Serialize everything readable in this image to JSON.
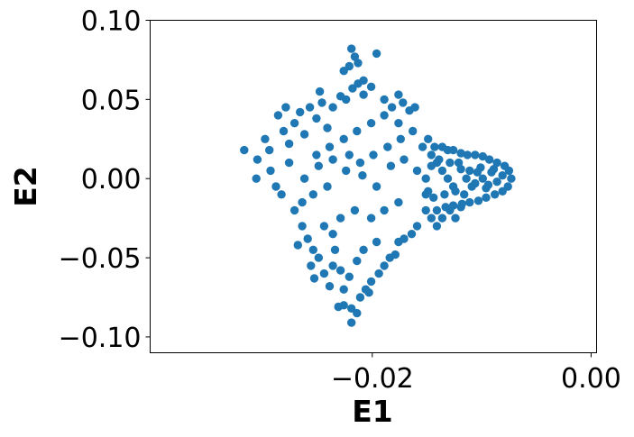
{
  "chart_data": {
    "type": "scatter",
    "title": "",
    "xlabel": "E1",
    "ylabel": "E2",
    "xlim": [
      -0.0403,
      0.0005
    ],
    "ylim": [
      -0.11,
      0.1
    ],
    "x_ticks": [
      -0.02,
      0.0
    ],
    "x_tick_labels": [
      "−0.02",
      "0.00"
    ],
    "y_ticks": [
      -0.1,
      -0.05,
      0.0,
      0.05,
      0.1
    ],
    "y_tick_labels": [
      "−0.10",
      "−0.05",
      "0.00",
      "0.05",
      "0.10"
    ],
    "grid": false,
    "legend": "none",
    "marker_color": "#1f77b4",
    "series": [
      {
        "values": [
          [
            -0.0317,
            0.018
          ],
          [
            -0.0305,
            0.012
          ],
          [
            -0.0298,
            0.025
          ],
          [
            -0.0293,
            0.005
          ],
          [
            -0.0306,
            0.0
          ],
          [
            -0.0288,
            -0.005
          ],
          [
            -0.0283,
            -0.01
          ],
          [
            -0.0294,
            0.018
          ],
          [
            -0.0281,
            0.03
          ],
          [
            -0.0276,
            0.022
          ],
          [
            -0.0286,
            0.04
          ],
          [
            -0.0279,
            0.045
          ],
          [
            -0.0271,
            0.035
          ],
          [
            -0.0266,
            0.042
          ],
          [
            -0.0262,
            0.028
          ],
          [
            -0.0257,
            0.045
          ],
          [
            -0.0251,
            0.038
          ],
          [
            -0.0246,
            0.048
          ],
          [
            -0.0241,
            0.032
          ],
          [
            -0.0236,
            0.045
          ],
          [
            -0.0229,
            0.052
          ],
          [
            -0.0224,
            0.05
          ],
          [
            -0.0218,
            0.057
          ],
          [
            -0.0213,
            0.06
          ],
          [
            -0.0226,
            0.068
          ],
          [
            -0.0221,
            0.071
          ],
          [
            -0.0216,
            0.077
          ],
          [
            -0.0219,
            0.082
          ],
          [
            -0.0213,
            0.073
          ],
          [
            -0.0208,
            0.062
          ],
          [
            -0.0196,
            0.079
          ],
          [
            -0.0201,
            0.058
          ],
          [
            -0.0208,
            0.053
          ],
          [
            -0.0189,
            0.05
          ],
          [
            -0.0182,
            0.045
          ],
          [
            -0.0176,
            0.053
          ],
          [
            -0.0172,
            0.048
          ],
          [
            -0.0166,
            0.043
          ],
          [
            -0.0161,
            0.045
          ],
          [
            -0.0248,
            0.055
          ],
          [
            -0.0271,
            -0.02
          ],
          [
            -0.0264,
            -0.03
          ],
          [
            -0.0268,
            -0.042
          ],
          [
            -0.0259,
            -0.038
          ],
          [
            -0.0254,
            -0.045
          ],
          [
            -0.0256,
            -0.055
          ],
          [
            -0.0249,
            -0.05
          ],
          [
            -0.0253,
            -0.063
          ],
          [
            -0.0244,
            -0.06
          ],
          [
            -0.0239,
            -0.068
          ],
          [
            -0.0236,
            -0.055
          ],
          [
            -0.0234,
            -0.045
          ],
          [
            -0.0226,
            -0.07
          ],
          [
            -0.0231,
            -0.081
          ],
          [
            -0.0226,
            -0.08
          ],
          [
            -0.0219,
            -0.082
          ],
          [
            -0.0219,
            -0.091
          ],
          [
            -0.0211,
            -0.075
          ],
          [
            -0.0214,
            -0.085
          ],
          [
            -0.0206,
            -0.07
          ],
          [
            -0.0201,
            -0.065
          ],
          [
            -0.0203,
            -0.072
          ],
          [
            -0.0194,
            -0.06
          ],
          [
            -0.0189,
            -0.055
          ],
          [
            -0.0184,
            -0.05
          ],
          [
            -0.0179,
            -0.048
          ],
          [
            -0.0176,
            -0.04
          ],
          [
            -0.0171,
            -0.038
          ],
          [
            -0.0164,
            -0.035
          ],
          [
            -0.0159,
            -0.03
          ],
          [
            -0.0221,
            -0.062
          ],
          [
            -0.0229,
            -0.058
          ],
          [
            -0.0214,
            -0.052
          ],
          [
            -0.0208,
            -0.045
          ],
          [
            -0.0196,
            -0.04
          ],
          [
            -0.0236,
            -0.035
          ],
          [
            -0.0244,
            -0.03
          ],
          [
            -0.0229,
            -0.025
          ],
          [
            -0.0216,
            -0.02
          ],
          [
            -0.0201,
            -0.025
          ],
          [
            -0.0189,
            -0.02
          ],
          [
            -0.0176,
            -0.015
          ],
          [
            -0.0264,
            -0.015
          ],
          [
            -0.0254,
            -0.01
          ],
          [
            -0.0241,
            -0.005
          ],
          [
            -0.0224,
            0.005
          ],
          [
            -0.0211,
            0.01
          ],
          [
            -0.0199,
            0.015
          ],
          [
            -0.0186,
            0.02
          ],
          [
            -0.0174,
            0.025
          ],
          [
            -0.0251,
            0.015
          ],
          [
            -0.0239,
            0.02
          ],
          [
            -0.0226,
            0.025
          ],
          [
            -0.0214,
            0.03
          ],
          [
            -0.0201,
            0.035
          ],
          [
            -0.0189,
            0.04
          ],
          [
            -0.0176,
            0.035
          ],
          [
            -0.0163,
            0.03
          ],
          [
            -0.0276,
            0.01
          ],
          [
            -0.0262,
            0.0
          ],
          [
            -0.0249,
            0.008
          ],
          [
            -0.0236,
            0.012
          ],
          [
            -0.0221,
            0.015
          ],
          [
            -0.0209,
            0.002
          ],
          [
            -0.0196,
            -0.005
          ],
          [
            -0.0183,
            0.008
          ],
          [
            -0.0171,
            0.012
          ],
          [
            -0.0159,
            0.005
          ],
          [
            -0.0154,
            0.02
          ],
          [
            -0.0151,
            -0.01
          ],
          [
            -0.0151,
            -0.02
          ],
          [
            -0.0146,
            -0.025
          ],
          [
            -0.0141,
            -0.03
          ],
          [
            -0.0136,
            -0.025
          ],
          [
            -0.0129,
            -0.02
          ],
          [
            -0.0124,
            -0.025
          ],
          [
            -0.0119,
            -0.018
          ],
          [
            -0.0149,
            0.025
          ],
          [
            -0.0143,
            0.02
          ],
          [
            -0.0136,
            0.02
          ],
          [
            -0.0131,
            0.018
          ],
          [
            -0.0126,
            0.018
          ],
          [
            -0.0119,
            0.016
          ],
          [
            -0.0113,
            0.015
          ],
          [
            -0.0106,
            0.015
          ],
          [
            -0.0099,
            0.014
          ],
          [
            -0.0093,
            0.012
          ],
          [
            -0.0086,
            0.01
          ],
          [
            -0.0079,
            0.008
          ],
          [
            -0.0075,
            0.005
          ],
          [
            -0.0073,
            0.0
          ],
          [
            -0.0076,
            -0.005
          ],
          [
            -0.0081,
            -0.008
          ],
          [
            -0.0088,
            -0.01
          ],
          [
            -0.0096,
            -0.012
          ],
          [
            -0.0103,
            -0.014
          ],
          [
            -0.0111,
            -0.015
          ],
          [
            -0.0118,
            -0.016
          ],
          [
            -0.0126,
            -0.017
          ],
          [
            -0.0133,
            -0.018
          ],
          [
            -0.0141,
            -0.02
          ],
          [
            -0.0146,
            0.015
          ],
          [
            -0.0141,
            0.01
          ],
          [
            -0.0136,
            0.005
          ],
          [
            -0.0131,
            0.0
          ],
          [
            -0.0126,
            -0.005
          ],
          [
            -0.0121,
            0.01
          ],
          [
            -0.0116,
            -0.01
          ],
          [
            -0.0111,
            0.005
          ],
          [
            -0.0106,
            -0.003
          ],
          [
            -0.0101,
            0.007
          ],
          [
            -0.0096,
            -0.006
          ],
          [
            -0.0091,
            0.004
          ],
          [
            -0.0086,
            -0.002
          ],
          [
            -0.0081,
            0.002
          ],
          [
            -0.0151,
            0.0
          ],
          [
            -0.0149,
            -0.008
          ],
          [
            -0.0146,
            0.008
          ],
          [
            -0.0144,
            -0.012
          ],
          [
            -0.0139,
            0.012
          ],
          [
            -0.0134,
            -0.01
          ],
          [
            -0.0129,
            0.01
          ],
          [
            -0.0124,
            -0.008
          ],
          [
            -0.0119,
            0.006
          ],
          [
            -0.0114,
            0.0
          ],
          [
            -0.0109,
            -0.005
          ],
          [
            -0.0104,
            0.004
          ],
          [
            -0.0099,
            0.0
          ],
          [
            -0.0094,
            -0.004
          ],
          [
            -0.0089,
            0.006
          ]
        ]
      }
    ]
  }
}
